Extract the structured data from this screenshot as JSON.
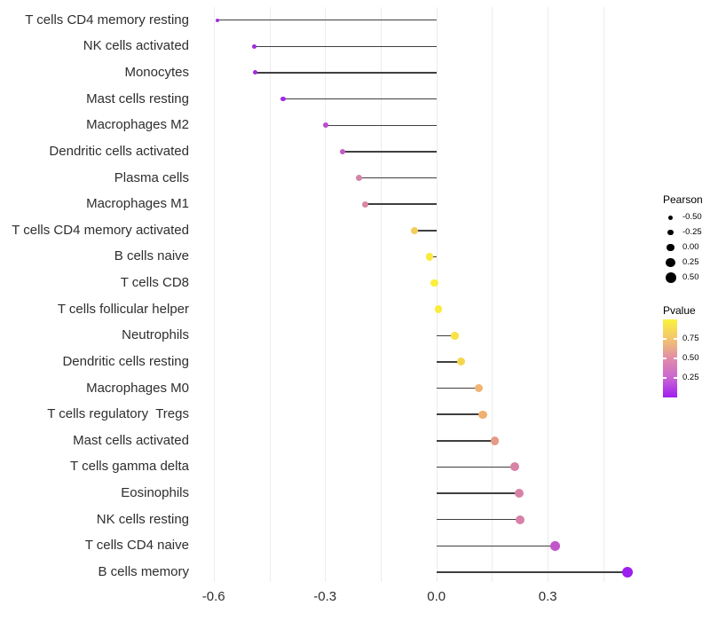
{
  "chart_data": {
    "type": "scatter",
    "subtype": "lollipop",
    "title": "",
    "xlabel": "",
    "ylabel": "",
    "xlim": [
      -0.65,
      0.58
    ],
    "grid": true,
    "gridline_values": [
      -0.6,
      -0.45,
      -0.3,
      -0.15,
      0.0,
      0.15,
      0.3,
      0.45
    ],
    "x_ticks": [
      {
        "value": -0.6,
        "label": "-0.6"
      },
      {
        "value": -0.3,
        "label": "-0.3"
      },
      {
        "value": 0.0,
        "label": "0.0"
      },
      {
        "value": 0.3,
        "label": "0.3"
      }
    ],
    "stem_color": "#3f3f3f",
    "points": [
      {
        "label": "T cells CD4 memory resting",
        "pearson": -0.59,
        "pvalue": 0.08,
        "color": "#a32ce4"
      },
      {
        "label": "NK cells activated",
        "pearson": -0.49,
        "pvalue": 0.08,
        "color": "#a02be2"
      },
      {
        "label": "Monocytes",
        "pearson": -0.487,
        "pvalue": 0.08,
        "color": "#a02be2"
      },
      {
        "label": "Mast cells resting",
        "pearson": -0.413,
        "pvalue": 0.09,
        "color": "#a32be5"
      },
      {
        "label": "Macrophages M2",
        "pearson": -0.298,
        "pvalue": 0.17,
        "color": "#bb4ad4"
      },
      {
        "label": "Dendritic cells activated",
        "pearson": -0.253,
        "pvalue": 0.23,
        "color": "#c45bc9"
      },
      {
        "label": "Plasma cells",
        "pearson": -0.208,
        "pvalue": 0.44,
        "color": "#d584a6"
      },
      {
        "label": "Macrophages M1",
        "pearson": -0.192,
        "pvalue": 0.46,
        "color": "#d888a0"
      },
      {
        "label": "T cells CD4 memory activated",
        "pearson": -0.06,
        "pvalue": 0.81,
        "color": "#f2cf5b"
      },
      {
        "label": "B cells naive",
        "pearson": -0.018,
        "pvalue": 0.96,
        "color": "#faea3d"
      },
      {
        "label": "T cells CD8",
        "pearson": -0.005,
        "pvalue": 0.98,
        "color": "#fbef3b"
      },
      {
        "label": "T cells follicular helper",
        "pearson": 0.005,
        "pvalue": 0.97,
        "color": "#faec3c"
      },
      {
        "label": "Neutrophils",
        "pearson": 0.049,
        "pvalue": 0.92,
        "color": "#f8e244"
      },
      {
        "label": "Dendritic cells resting",
        "pearson": 0.067,
        "pvalue": 0.86,
        "color": "#f4d64e"
      },
      {
        "label": "Macrophages M0",
        "pearson": 0.115,
        "pvalue": 0.71,
        "color": "#f0b474"
      },
      {
        "label": "T cells regulatory  Tregs",
        "pearson": 0.125,
        "pvalue": 0.7,
        "color": "#efb072"
      },
      {
        "label": "Mast cells activated",
        "pearson": 0.157,
        "pvalue": 0.6,
        "color": "#e59b87"
      },
      {
        "label": "T cells gamma delta",
        "pearson": 0.21,
        "pvalue": 0.45,
        "color": "#d881a6"
      },
      {
        "label": "Eosinophils",
        "pearson": 0.223,
        "pvalue": 0.45,
        "color": "#d881a6"
      },
      {
        "label": "NK cells resting",
        "pearson": 0.225,
        "pvalue": 0.45,
        "color": "#d881a6"
      },
      {
        "label": "T cells CD4 naive",
        "pearson": 0.32,
        "pvalue": 0.21,
        "color": "#c355cb"
      },
      {
        "label": "B cells memory",
        "pearson": 0.514,
        "pvalue": 0.03,
        "color": "#9d1fef"
      }
    ],
    "legend_position": "right",
    "legend_size": {
      "title": "Pearson",
      "values": [
        -0.5,
        -0.25,
        0.0,
        0.25,
        0.5
      ],
      "labels": [
        "-0.50",
        "-0.25",
        "0.00",
        "0.25",
        "0.50"
      ],
      "dot_color": "#000000"
    },
    "legend_color": {
      "title": "Pvalue",
      "tick_values": [
        0.75,
        0.5,
        0.25
      ],
      "tick_labels": [
        "0.75",
        "0.50",
        "0.25"
      ],
      "range": [
        0,
        1
      ],
      "gradient_stops_low_to_high": [
        "#a01cf0",
        "#c966d2",
        "#e18ca9",
        "#f3c46e",
        "#f9f23c"
      ]
    }
  }
}
